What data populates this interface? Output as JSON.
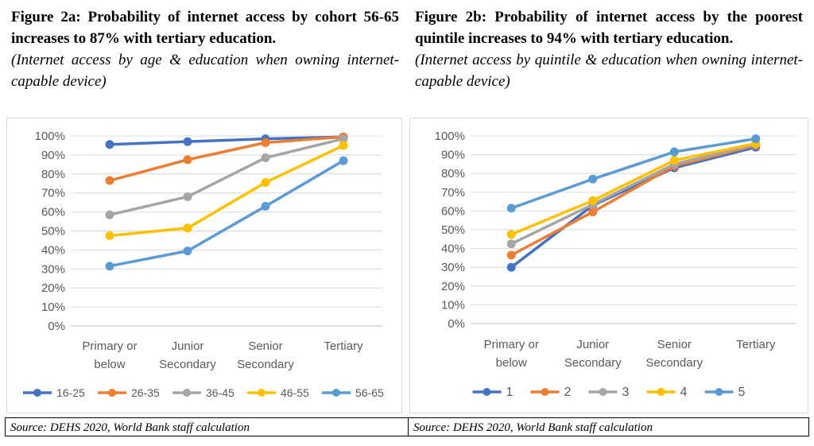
{
  "figures": [
    {
      "title": "Figure 2a: Probability of internet access by cohort 56-65 increases to 87% with tertiary education.",
      "subtitle": "(Internet access by age & education when owning internet-capable device)",
      "source": "Source: DEHS 2020, World Bank staff calculation"
    },
    {
      "title": "Figure 2b: Probability of internet access by the poorest quintile increases to 94% with tertiary education.",
      "subtitle": "(Internet access by quintile & education when owning internet-capable device)",
      "source": "Source: DEHS 2020, World Bank staff calculation"
    }
  ],
  "chart_data": [
    {
      "type": "line",
      "categories": [
        [
          "Primary or",
          "below"
        ],
        [
          "Junior",
          "Secondary"
        ],
        [
          "Senior",
          "Secondary"
        ],
        [
          "Tertiary"
        ]
      ],
      "ylim": [
        0,
        100
      ],
      "yticks": [
        "0%",
        "10%",
        "20%",
        "30%",
        "40%",
        "50%",
        "60%",
        "70%",
        "80%",
        "90%",
        "100%"
      ],
      "grid": true,
      "legend": "bottom",
      "series": [
        {
          "name": "16-25",
          "color": "#4472C4",
          "values": [
            95.5,
            97,
            98.5,
            99.5
          ]
        },
        {
          "name": "26-35",
          "color": "#ED7D31",
          "values": [
            76.5,
            87.5,
            96.5,
            99.5
          ]
        },
        {
          "name": "36-45",
          "color": "#A5A5A5",
          "values": [
            58.5,
            68,
            88.5,
            98.5
          ]
        },
        {
          "name": "46-55",
          "color": "#FFC000",
          "values": [
            47.5,
            51.5,
            75.5,
            95
          ]
        },
        {
          "name": "56-65",
          "color": "#5B9BD5",
          "values": [
            31.5,
            39.5,
            63,
            87
          ]
        }
      ]
    },
    {
      "type": "line",
      "categories": [
        [
          "Primary or",
          "below"
        ],
        [
          "Junior",
          "Secondary"
        ],
        [
          "Senior",
          "Secondary"
        ],
        [
          "Tertiary"
        ]
      ],
      "ylim": [
        0,
        100
      ],
      "yticks": [
        "0%",
        "10%",
        "20%",
        "30%",
        "40%",
        "50%",
        "60%",
        "70%",
        "80%",
        "90%",
        "100%"
      ],
      "grid": true,
      "legend": "bottom",
      "series": [
        {
          "name": "1",
          "color": "#4472C4",
          "values": [
            30,
            63,
            83,
            94
          ]
        },
        {
          "name": "2",
          "color": "#ED7D31",
          "values": [
            36.5,
            59.5,
            84,
            95
          ]
        },
        {
          "name": "3",
          "color": "#A5A5A5",
          "values": [
            42.5,
            63.5,
            85,
            95.5
          ]
        },
        {
          "name": "4",
          "color": "#FFC000",
          "values": [
            47.5,
            65.5,
            87,
            96
          ]
        },
        {
          "name": "5",
          "color": "#5B9BD5",
          "values": [
            61.5,
            77,
            91.5,
            98.5
          ]
        }
      ]
    }
  ]
}
